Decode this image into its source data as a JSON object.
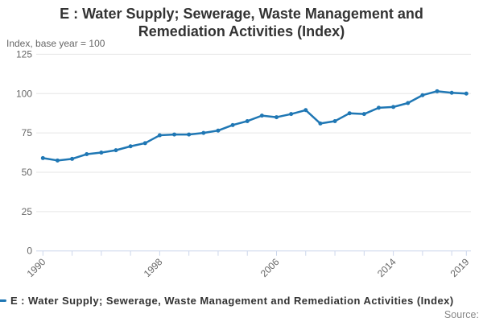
{
  "header": {
    "title_lines": [
      "E : Water Supply; Sewerage, Waste Management and",
      "Remediation Activities (Index)"
    ],
    "subtitle": "Index, base year = 100"
  },
  "legend": {
    "marker_icon": "line-series-marker-icon",
    "label": "E : Water Supply; Sewerage, Waste Management and Remediation Activities (Index)"
  },
  "source_label": "Source:",
  "colors": {
    "line": "#1f77b4",
    "axis": "#ccd6eb",
    "grid": "#e6e6e6",
    "label_text": "#666666",
    "title_text": "#333333",
    "source_text": "#888888"
  },
  "chart_data": {
    "type": "line",
    "title": "E : Water Supply; Sewerage, Waste Management and Remediation Activities (Index)",
    "subtitle": "Index, base year = 100",
    "xlabel": "",
    "ylabel": "Index, base year = 100",
    "ylim": [
      0,
      125
    ],
    "y_ticks": [
      0,
      25,
      50,
      75,
      100,
      125
    ],
    "x_range": [
      1990,
      2019
    ],
    "x_tick_interval": 2,
    "x_axis_labels": [
      1990,
      1998,
      2006,
      2014,
      2019
    ],
    "grid": "horizontal",
    "legend_position": "bottom",
    "x": [
      1990,
      1991,
      1992,
      1993,
      1994,
      1995,
      1996,
      1997,
      1998,
      1999,
      2000,
      2001,
      2002,
      2003,
      2004,
      2005,
      2006,
      2007,
      2008,
      2009,
      2010,
      2011,
      2012,
      2013,
      2014,
      2015,
      2016,
      2017,
      2018,
      2019
    ],
    "series": [
      {
        "name": "E : Water Supply; Sewerage, Waste Management and Remediation Activities (Index)",
        "values": [
          59,
          57.5,
          58.5,
          61.5,
          62.5,
          64,
          66.5,
          68.5,
          73.5,
          74,
          74,
          75,
          76.5,
          80,
          82.5,
          86,
          85,
          87,
          89.5,
          81,
          82.5,
          87.5,
          87,
          91,
          91.5,
          94,
          99,
          101.5,
          100.5,
          100
        ]
      }
    ]
  }
}
